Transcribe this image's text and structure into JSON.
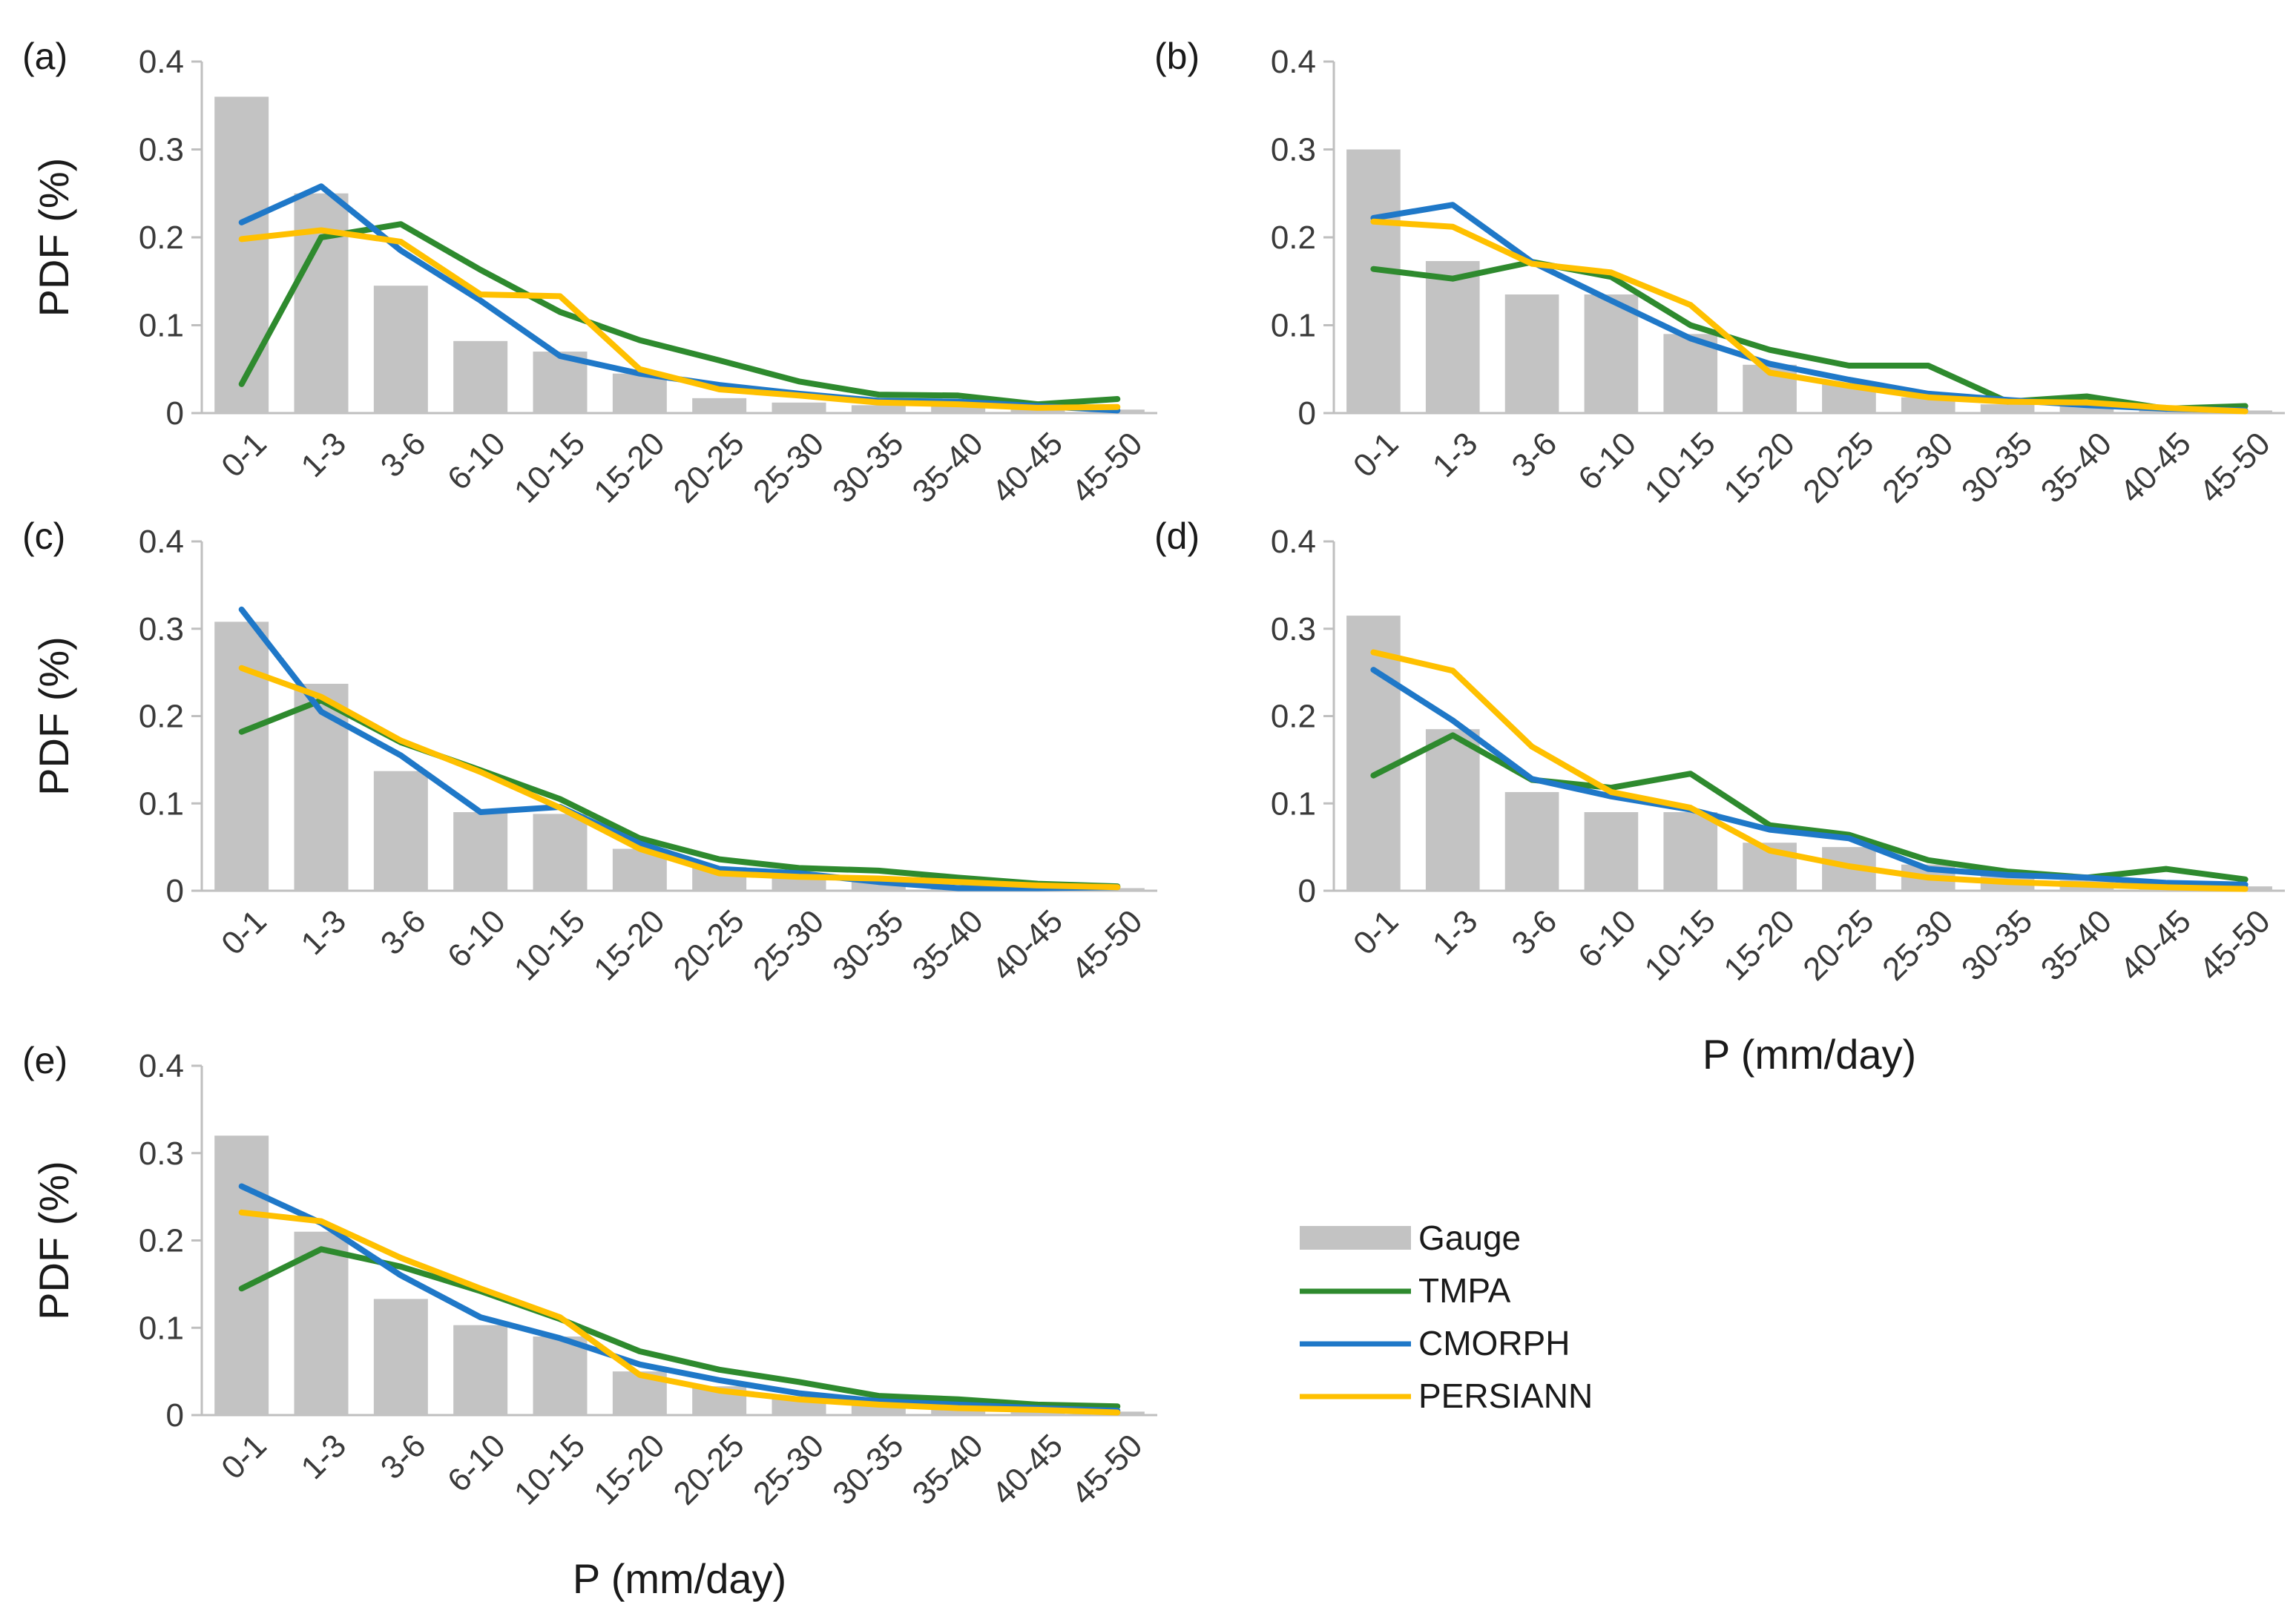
{
  "colors": {
    "gauge": "#c3c3c3",
    "tmpa": "#2e8a2e",
    "cmorph": "#1f78c8",
    "persiann": "#ffc000",
    "axis": "#bfbfbf"
  },
  "legend": {
    "gauge": "Gauge",
    "tmpa": "TMPA",
    "cmorph": "CMORPH",
    "persiann": "PERSIANN"
  },
  "chart_data": [
    {
      "panel": "(a)",
      "type": "bar+line",
      "ylabel": "PDF (%)",
      "xlabel": "",
      "ylim": [
        0,
        0.4
      ],
      "yticks": [
        "0",
        "0.1",
        "0.2",
        "0.3",
        "0.4"
      ],
      "categories": [
        "0-1",
        "1-3",
        "3-6",
        "6-10",
        "10-15",
        "15-20",
        "20-25",
        "25-30",
        "30-35",
        "35-40",
        "40-45",
        "45-50"
      ],
      "series": [
        {
          "name": "Gauge",
          "kind": "bar",
          "values": [
            0.36,
            0.25,
            0.145,
            0.082,
            0.07,
            0.045,
            0.017,
            0.012,
            0.009,
            0.008,
            0.006,
            0.004
          ]
        },
        {
          "name": "TMPA",
          "kind": "line",
          "values": [
            0.033,
            0.2,
            0.215,
            0.163,
            0.115,
            0.083,
            0.06,
            0.036,
            0.021,
            0.02,
            0.01,
            0.016
          ]
        },
        {
          "name": "CMORPH",
          "kind": "line",
          "values": [
            0.217,
            0.258,
            0.185,
            0.128,
            0.065,
            0.045,
            0.032,
            0.022,
            0.014,
            0.013,
            0.008,
            0.003
          ]
        },
        {
          "name": "PERSIANN",
          "kind": "line",
          "values": [
            0.198,
            0.208,
            0.195,
            0.135,
            0.133,
            0.05,
            0.027,
            0.02,
            0.012,
            0.01,
            0.006,
            0.007
          ]
        }
      ]
    },
    {
      "panel": "(b)",
      "type": "bar+line",
      "ylabel": "",
      "xlabel": "",
      "ylim": [
        0,
        0.4
      ],
      "yticks": [
        "0",
        "0.1",
        "0.2",
        "0.3",
        "0.4"
      ],
      "categories": [
        "0-1",
        "1-3",
        "3-6",
        "6-10",
        "10-15",
        "15-20",
        "20-25",
        "25-30",
        "30-35",
        "35-40",
        "40-45",
        "45-50"
      ],
      "series": [
        {
          "name": "Gauge",
          "kind": "bar",
          "values": [
            0.3,
            0.173,
            0.135,
            0.135,
            0.09,
            0.055,
            0.034,
            0.018,
            0.01,
            0.008,
            0.005,
            0.003
          ]
        },
        {
          "name": "TMPA",
          "kind": "line",
          "values": [
            0.164,
            0.153,
            0.172,
            0.155,
            0.1,
            0.072,
            0.054,
            0.054,
            0.013,
            0.019,
            0.005,
            0.008
          ]
        },
        {
          "name": "CMORPH",
          "kind": "line",
          "values": [
            0.222,
            0.237,
            0.172,
            0.128,
            0.085,
            0.056,
            0.038,
            0.022,
            0.015,
            0.009,
            0.005,
            0.003
          ]
        },
        {
          "name": "PERSIANN",
          "kind": "line",
          "values": [
            0.218,
            0.212,
            0.17,
            0.16,
            0.123,
            0.046,
            0.031,
            0.018,
            0.013,
            0.012,
            0.006,
            0.002
          ]
        }
      ]
    },
    {
      "panel": "(c)",
      "type": "bar+line",
      "ylabel": "PDF (%)",
      "xlabel": "",
      "ylim": [
        0,
        0.4
      ],
      "yticks": [
        "0",
        "0.1",
        "0.2",
        "0.3",
        "0.4"
      ],
      "categories": [
        "0-1",
        "1-3",
        "3-6",
        "6-10",
        "10-15",
        "15-20",
        "20-25",
        "25-30",
        "30-35",
        "35-40",
        "40-45",
        "45-50"
      ],
      "series": [
        {
          "name": "Gauge",
          "kind": "bar",
          "values": [
            0.308,
            0.237,
            0.137,
            0.09,
            0.088,
            0.048,
            0.027,
            0.016,
            0.01,
            0.006,
            0.004,
            0.003
          ]
        },
        {
          "name": "TMPA",
          "kind": "line",
          "values": [
            0.182,
            0.218,
            0.17,
            0.138,
            0.105,
            0.06,
            0.036,
            0.026,
            0.023,
            0.015,
            0.008,
            0.005
          ]
        },
        {
          "name": "CMORPH",
          "kind": "line",
          "values": [
            0.322,
            0.205,
            0.155,
            0.09,
            0.096,
            0.054,
            0.025,
            0.02,
            0.01,
            0.003,
            0.003,
            0.004
          ]
        },
        {
          "name": "PERSIANN",
          "kind": "line",
          "values": [
            0.255,
            0.222,
            0.172,
            0.136,
            0.095,
            0.048,
            0.02,
            0.016,
            0.014,
            0.01,
            0.006,
            0.004
          ]
        }
      ]
    },
    {
      "panel": "(d)",
      "type": "bar+line",
      "ylabel": "",
      "xlabel": "P (mm/day)",
      "ylim": [
        0,
        0.4
      ],
      "yticks": [
        "0",
        "0.1",
        "0.2",
        "0.3",
        "0.4"
      ],
      "categories": [
        "0-1",
        "1-3",
        "3-6",
        "6-10",
        "10-15",
        "15-20",
        "20-25",
        "25-30",
        "30-35",
        "35-40",
        "40-45",
        "45-50"
      ],
      "series": [
        {
          "name": "Gauge",
          "kind": "bar",
          "values": [
            0.315,
            0.185,
            0.113,
            0.09,
            0.09,
            0.055,
            0.05,
            0.03,
            0.02,
            0.012,
            0.008,
            0.005
          ]
        },
        {
          "name": "TMPA",
          "kind": "line",
          "values": [
            0.132,
            0.178,
            0.127,
            0.118,
            0.134,
            0.075,
            0.064,
            0.035,
            0.022,
            0.015,
            0.025,
            0.013
          ]
        },
        {
          "name": "CMORPH",
          "kind": "line",
          "values": [
            0.253,
            0.195,
            0.128,
            0.108,
            0.093,
            0.07,
            0.06,
            0.025,
            0.018,
            0.015,
            0.009,
            0.007
          ]
        },
        {
          "name": "PERSIANN",
          "kind": "line",
          "values": [
            0.273,
            0.252,
            0.165,
            0.113,
            0.095,
            0.046,
            0.028,
            0.015,
            0.01,
            0.007,
            0.004,
            0.002
          ]
        }
      ]
    },
    {
      "panel": "(e)",
      "type": "bar+line",
      "ylabel": "PDF (%)",
      "xlabel": "P (mm/day)",
      "ylim": [
        0,
        0.4
      ],
      "yticks": [
        "0",
        "0.1",
        "0.2",
        "0.3",
        "0.4"
      ],
      "categories": [
        "0-1",
        "1-3",
        "3-6",
        "6-10",
        "10-15",
        "15-20",
        "20-25",
        "25-30",
        "30-35",
        "35-40",
        "40-45",
        "45-50"
      ],
      "series": [
        {
          "name": "Gauge",
          "kind": "bar",
          "values": [
            0.32,
            0.21,
            0.133,
            0.103,
            0.09,
            0.05,
            0.033,
            0.02,
            0.013,
            0.008,
            0.006,
            0.004
          ]
        },
        {
          "name": "TMPA",
          "kind": "line",
          "values": [
            0.145,
            0.19,
            0.17,
            0.142,
            0.11,
            0.073,
            0.052,
            0.038,
            0.022,
            0.018,
            0.012,
            0.01
          ]
        },
        {
          "name": "CMORPH",
          "kind": "line",
          "values": [
            0.262,
            0.22,
            0.16,
            0.112,
            0.088,
            0.058,
            0.04,
            0.025,
            0.016,
            0.012,
            0.008,
            0.005
          ]
        },
        {
          "name": "PERSIANN",
          "kind": "line",
          "values": [
            0.232,
            0.222,
            0.18,
            0.145,
            0.112,
            0.046,
            0.028,
            0.018,
            0.012,
            0.008,
            0.006,
            0.003
          ]
        }
      ]
    }
  ]
}
